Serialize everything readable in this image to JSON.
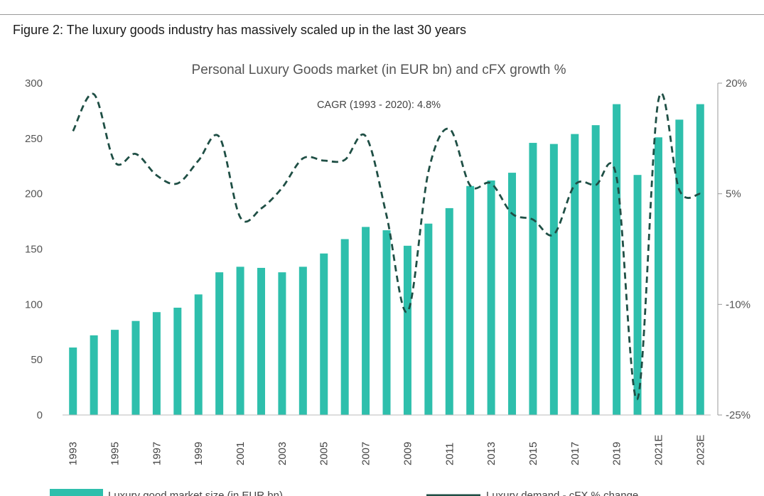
{
  "figure_caption": "Figure 2: The luxury goods industry has massively scaled up in the last 30 years",
  "colors": {
    "bar": "#2ebfac",
    "line": "#1f4f45",
    "axis": "#999999"
  },
  "chart_data": {
    "type": "bar",
    "title": "Personal Luxury Goods market (in EUR bn) and cFX growth %",
    "annotation": "CAGR (1993 - 2020): 4.8%",
    "categories": [
      "1993",
      "1994",
      "1995",
      "1996",
      "1997",
      "1998",
      "1999",
      "2000",
      "2001",
      "2002",
      "2003",
      "2004",
      "2005",
      "2006",
      "2007",
      "2008",
      "2009",
      "2010",
      "2011",
      "2012",
      "2013",
      "2014",
      "2015",
      "2016",
      "2017",
      "2018",
      "2019",
      "2020",
      "2021E",
      "2022E",
      "2023E"
    ],
    "x_tick_labels": [
      "1993",
      "",
      "1995",
      "",
      "1997",
      "",
      "1999",
      "",
      "2001",
      "",
      "2003",
      "",
      "2005",
      "",
      "2007",
      "",
      "2009",
      "",
      "2011",
      "",
      "2013",
      "",
      "2015",
      "",
      "2017",
      "",
      "2019",
      "",
      "2021E",
      "",
      "2023E"
    ],
    "left_axis": {
      "ylim": [
        0,
        300
      ],
      "ticks": [
        "0",
        "50",
        "100",
        "150",
        "200",
        "250",
        "300"
      ]
    },
    "right_axis": {
      "ylim": [
        -25,
        20
      ],
      "ticks": [
        "-25%",
        "-10%",
        "5%",
        "20%"
      ]
    },
    "series": [
      {
        "name": "Luxury good market size (in EUR bn)",
        "type": "bar",
        "axis": "left",
        "values": [
          61,
          72,
          77,
          85,
          93,
          97,
          109,
          129,
          134,
          133,
          129,
          134,
          146,
          159,
          170,
          167,
          153,
          173,
          187,
          207,
          212,
          219,
          246,
          245,
          254,
          262,
          281,
          217,
          251,
          267,
          281
        ]
      },
      {
        "name": "Luxury demand - cFX % change",
        "type": "line",
        "style": "dashed",
        "axis": "right",
        "values": [
          13.5,
          18.5,
          9.3,
          10.4,
          7.5,
          6.4,
          9.5,
          12.7,
          1.8,
          3.0,
          5.8,
          9.8,
          9.5,
          9.6,
          12.8,
          2.0,
          -11.0,
          8.0,
          13.8,
          6.1,
          6.4,
          2.3,
          1.5,
          -0.5,
          6.2,
          6.2,
          7.2,
          -22.8,
          17.7,
          5.5,
          5.0
        ]
      }
    ]
  }
}
